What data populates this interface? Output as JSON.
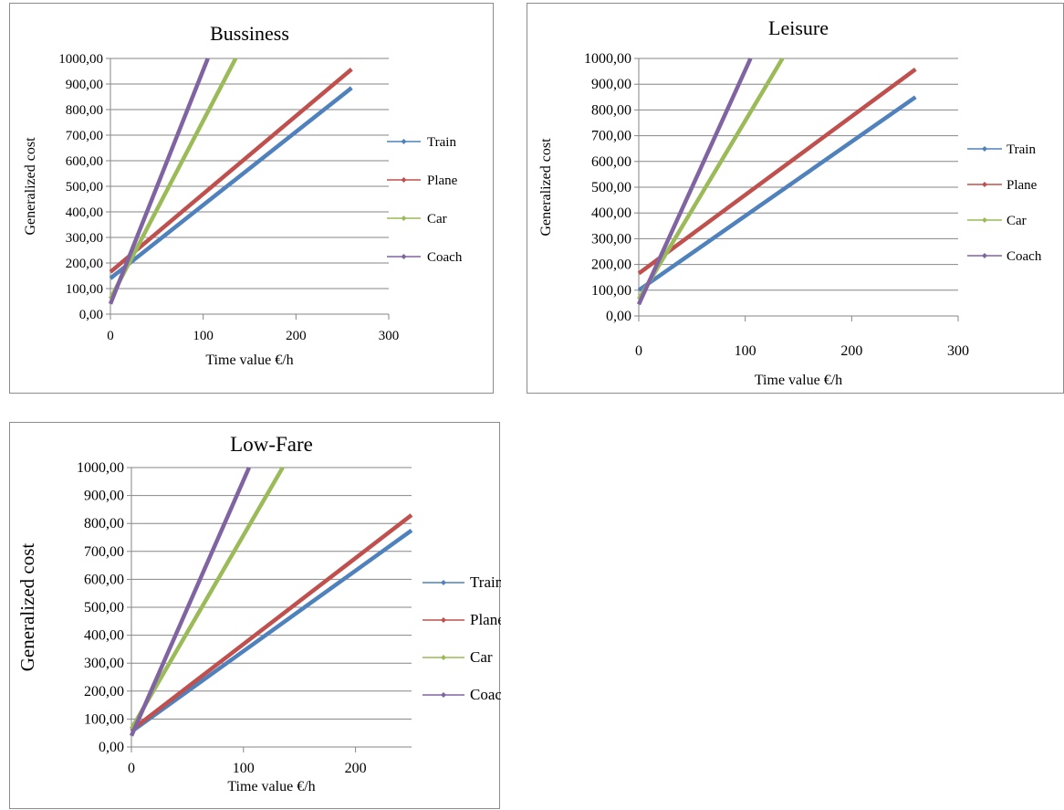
{
  "colors": {
    "train": "#4F81BD",
    "plane": "#C0504D",
    "car": "#9BBB59",
    "coach": "#8064A2",
    "gridline": "#868686",
    "frame": "#8c8c8c"
  },
  "chart_data": [
    {
      "type": "line",
      "title": "Bussiness",
      "xlabel": "Time value €/h",
      "ylabel": "Generalized cost",
      "xlim": [
        0,
        300
      ],
      "ylim": [
        0,
        1000
      ],
      "xticks": [
        0,
        100,
        200,
        300
      ],
      "xtick_labels": [
        "0",
        "100",
        "200",
        "300"
      ],
      "yticks": [
        0,
        100,
        200,
        300,
        400,
        500,
        600,
        700,
        800,
        900,
        1000
      ],
      "ytick_labels": [
        "0,00",
        "100,00",
        "200,00",
        "300,00",
        "400,00",
        "500,00",
        "600,00",
        "700,00",
        "800,00",
        "900,00",
        "1000,00"
      ],
      "grid": "horizontal",
      "legend": "right",
      "series": [
        {
          "name": "Train",
          "color": "#4F81BD",
          "x": [
            0,
            260
          ],
          "y": [
            140,
            885
          ]
        },
        {
          "name": "Plane",
          "color": "#C0504D",
          "x": [
            0,
            260
          ],
          "y": [
            165,
            958
          ]
        },
        {
          "name": "Car",
          "color": "#9BBB59",
          "x": [
            0,
            135
          ],
          "y": [
            60,
            1000
          ]
        },
        {
          "name": "Coach",
          "color": "#8064A2",
          "x": [
            0,
            105
          ],
          "y": [
            40,
            1000
          ]
        }
      ]
    },
    {
      "type": "line",
      "title": "Leisure",
      "xlabel": "Time value €/h",
      "ylabel": "Generalized cost",
      "xlim": [
        0,
        300
      ],
      "ylim": [
        0,
        1000
      ],
      "xticks": [
        0,
        100,
        200,
        300
      ],
      "xtick_labels": [
        "0",
        "100",
        "200",
        "300"
      ],
      "yticks": [
        0,
        100,
        200,
        300,
        400,
        500,
        600,
        700,
        800,
        900,
        1000
      ],
      "ytick_labels": [
        "0,00",
        "100,00",
        "200,00",
        "300,00",
        "400,00",
        "500,00",
        "600,00",
        "700,00",
        "800,00",
        "900,00",
        "1000,00"
      ],
      "grid": "horizontal",
      "legend": "right",
      "series": [
        {
          "name": "Train",
          "color": "#4F81BD",
          "x": [
            0,
            260
          ],
          "y": [
            100,
            850
          ]
        },
        {
          "name": "Plane",
          "color": "#C0504D",
          "x": [
            0,
            260
          ],
          "y": [
            165,
            958
          ]
        },
        {
          "name": "Car",
          "color": "#9BBB59",
          "x": [
            0,
            135
          ],
          "y": [
            65,
            1000
          ]
        },
        {
          "name": "Coach",
          "color": "#8064A2",
          "x": [
            0,
            105
          ],
          "y": [
            45,
            1000
          ]
        }
      ]
    },
    {
      "type": "line",
      "title": "Low-Fare",
      "xlabel": "Time value €/h",
      "ylabel": "Generalized cost",
      "xlim": [
        0,
        250
      ],
      "ylim": [
        0,
        1000
      ],
      "xticks": [
        0,
        100,
        200
      ],
      "xtick_labels": [
        "0",
        "100",
        "200"
      ],
      "yticks": [
        0,
        100,
        200,
        300,
        400,
        500,
        600,
        700,
        800,
        900,
        1000
      ],
      "ytick_labels": [
        "0,00",
        "100,00",
        "200,00",
        "300,00",
        "400,00",
        "500,00",
        "600,00",
        "700,00",
        "800,00",
        "900,00",
        "1000,00"
      ],
      "grid": "horizontal",
      "legend": "right",
      "series": [
        {
          "name": "Train",
          "color": "#4F81BD",
          "x": [
            0,
            250
          ],
          "y": [
            55,
            775
          ]
        },
        {
          "name": "Plane",
          "color": "#C0504D",
          "x": [
            0,
            250
          ],
          "y": [
            60,
            830
          ]
        },
        {
          "name": "Car",
          "color": "#9BBB59",
          "x": [
            0,
            135
          ],
          "y": [
            65,
            1000
          ]
        },
        {
          "name": "Coach",
          "color": "#8064A2",
          "x": [
            0,
            105
          ],
          "y": [
            40,
            1000
          ]
        }
      ]
    }
  ]
}
